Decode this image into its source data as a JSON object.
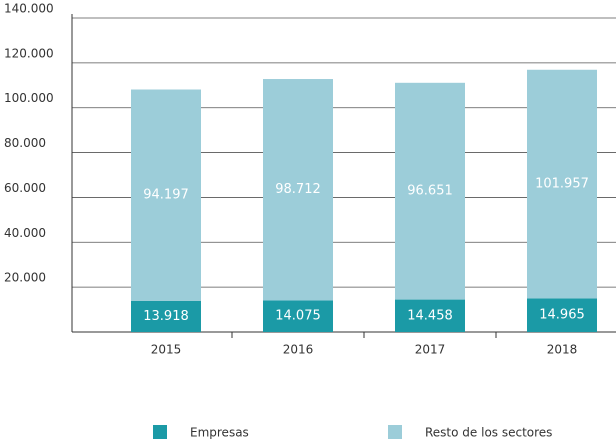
{
  "chart_data": {
    "type": "stacked_bar",
    "categories": [
      "2015",
      "2016",
      "2017",
      "2018"
    ],
    "series": [
      {
        "name": "Empresas",
        "color": "#1b9aa6",
        "values": [
          13918,
          14075,
          14458,
          14965
        ],
        "value_labels": [
          "13.918",
          "14.075",
          "14.458",
          "14.965"
        ]
      },
      {
        "name": "Resto de los sectores",
        "color": "#9ccdd9",
        "values": [
          94197,
          98712,
          96651,
          101957
        ],
        "value_labels": [
          "94.197",
          "98.712",
          "96.651",
          "101.957"
        ]
      }
    ],
    "ylim": [
      0,
      140000
    ],
    "yticks": [
      {
        "value": 20000,
        "label": "20.000"
      },
      {
        "value": 40000,
        "label": "40.000"
      },
      {
        "value": 60000,
        "label": "60.000"
      },
      {
        "value": 80000,
        "label": "80.000"
      },
      {
        "value": 100000,
        "label": "100.000"
      },
      {
        "value": 120000,
        "label": "120.000"
      },
      {
        "value": 140000,
        "label": "140.000"
      }
    ],
    "grid": true
  }
}
